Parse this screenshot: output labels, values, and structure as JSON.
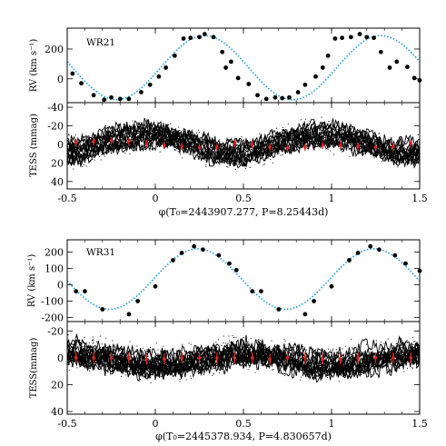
{
  "chart_data": [
    {
      "type": "scatter",
      "panel": "rv",
      "star_label": "WR21",
      "ylabel": "RV (km s⁻¹)",
      "xlim": [
        -0.5,
        1.5
      ],
      "ylim": [
        -160,
        340
      ],
      "x_ticks": [
        "-0.5",
        "0",
        "0.5",
        "1",
        "1.5"
      ],
      "y_ticks": [
        {
          "v": 200,
          "t": "200"
        },
        {
          "v": 0,
          "t": "0"
        }
      ],
      "fit": {
        "style": "dotted",
        "color": "#1a9bd7",
        "mean": 75,
        "amplitude": 215,
        "phase_of_max": 0.28
      },
      "series": [
        {
          "x": [
            -0.47,
            -0.42,
            -0.35,
            -0.29,
            -0.25,
            -0.2,
            -0.15,
            -0.08,
            -0.03,
            0.02,
            0.06,
            0.11,
            0.16,
            0.2,
            0.25,
            0.28,
            0.33,
            0.38,
            0.4,
            0.43,
            0.47
          ],
          "y": [
            35,
            -30,
            -110,
            -140,
            -125,
            -135,
            -135,
            -90,
            -40,
            15,
            75,
            155,
            270,
            275,
            280,
            300,
            280,
            180,
            75,
            115,
            5
          ]
        },
        {
          "x": [
            0.53,
            0.58,
            0.63,
            0.68,
            0.72,
            0.76,
            0.81,
            0.85,
            0.91,
            0.95,
            0.98,
            1.02,
            1.06,
            1.11,
            1.16,
            1.2,
            1.24,
            1.28,
            1.33,
            1.37,
            1.43,
            1.47,
            1.5
          ],
          "y": [
            -35,
            -110,
            -135,
            -125,
            -130,
            -125,
            -90,
            -40,
            15,
            75,
            155,
            270,
            275,
            280,
            300,
            280,
            275,
            180,
            75,
            115,
            80,
            5,
            -10
          ]
        }
      ]
    },
    {
      "type": "line",
      "panel": "tess",
      "ylabel": "TESS (mmag)",
      "xlabel": "φ(T₀=2443907.277, P=8.25443d)",
      "xlim": [
        -0.5,
        1.5
      ],
      "ylim": [
        -45,
        48
      ],
      "inverted_y": true,
      "x_ticks": [
        "-0.5",
        "0",
        "0.5",
        "1",
        "1.5"
      ],
      "y_ticks": [
        {
          "v": -40,
          "t": "-40"
        },
        {
          "v": -20,
          "t": "-20"
        },
        {
          "v": 0,
          "t": "0"
        },
        {
          "v": 20,
          "t": "20"
        },
        {
          "v": 40,
          "t": "40"
        }
      ],
      "light_curve": {
        "color": "#000000",
        "band_halfwidth": 18,
        "wave_amplitude": 10,
        "wave_min_phase": 0.45
      },
      "binned_color": "#d62728",
      "binned": {
        "x": [
          -0.45,
          -0.35,
          -0.25,
          -0.15,
          -0.05,
          0.05,
          0.15,
          0.25,
          0.35,
          0.45,
          0.55,
          0.65,
          0.75,
          0.85,
          0.95,
          1.05,
          1.15,
          1.25,
          1.35,
          1.45
        ],
        "y": [
          -2,
          -3,
          -4,
          -3,
          -1,
          1,
          2,
          3,
          3,
          -1,
          0,
          3,
          4,
          3,
          1,
          1,
          2,
          3,
          2,
          -1
        ]
      }
    },
    {
      "type": "scatter",
      "panel": "rv",
      "star_label": "WR31",
      "ylabel": "RV (km s⁻¹)",
      "xlim": [
        -0.5,
        1.5
      ],
      "ylim": [
        -225,
        275
      ],
      "x_ticks": [
        "-0.5",
        "0",
        "0.5",
        "1",
        "1.5"
      ],
      "y_ticks": [
        {
          "v": 200,
          "t": "200"
        },
        {
          "v": 100,
          "t": "100"
        },
        {
          "v": 0,
          "t": "0"
        },
        {
          "v": -100,
          "t": "-100"
        },
        {
          "v": -200,
          "t": "-200"
        }
      ],
      "fit": {
        "style": "dotted",
        "color": "#1a9bd7",
        "mean": 35,
        "amplitude": 185,
        "phase_of_max": 0.24
      },
      "series": [
        {
          "x": [
            -0.45,
            -0.4,
            -0.3,
            -0.15,
            -0.1,
            0,
            0.1,
            0.15,
            0.22,
            0.27,
            0.36,
            0.42,
            0.46
          ],
          "y": [
            -40,
            -40,
            -150,
            -180,
            -100,
            -10,
            150,
            195,
            235,
            215,
            180,
            130,
            90
          ]
        },
        {
          "x": [
            0.55,
            0.6,
            0.7,
            0.85,
            0.9,
            1,
            1.1,
            1.15,
            1.22,
            1.27,
            1.36,
            1.42,
            1.5
          ],
          "y": [
            -40,
            -40,
            -150,
            -180,
            -100,
            -10,
            150,
            195,
            235,
            215,
            180,
            130,
            85
          ]
        }
      ]
    },
    {
      "type": "line",
      "panel": "tess",
      "ylabel": "TESS(mmag)",
      "xlabel": "φ(T₀=2445378.934, P=4.830657d)",
      "xlim": [
        -0.5,
        1.5
      ],
      "ylim": [
        -27,
        42
      ],
      "inverted_y": true,
      "x_ticks": [
        "-0.5",
        "0",
        "0.5",
        "1",
        "1.5"
      ],
      "y_ticks": [
        {
          "v": -20,
          "t": "-20"
        },
        {
          "v": 0,
          "t": "0"
        },
        {
          "v": 20,
          "t": "20"
        },
        {
          "v": 40,
          "t": "40"
        }
      ],
      "light_curve": {
        "color": "#000000",
        "band_halfwidth": 14,
        "wave_amplitude": 4,
        "wave_min_phase": 0.0
      },
      "binned_color": "#d62728",
      "binned": {
        "x": [
          -0.45,
          -0.35,
          -0.25,
          -0.15,
          -0.05,
          0.05,
          0.15,
          0.25,
          0.35,
          0.45,
          0.55,
          0.65,
          0.75,
          0.85,
          0.95,
          1.05,
          1.15,
          1.25,
          1.35,
          1.45
        ],
        "y": [
          0,
          0,
          0,
          0,
          1,
          1,
          0,
          0,
          0,
          0,
          0,
          1,
          0,
          0,
          1,
          1,
          0,
          0,
          0,
          0
        ]
      }
    }
  ]
}
